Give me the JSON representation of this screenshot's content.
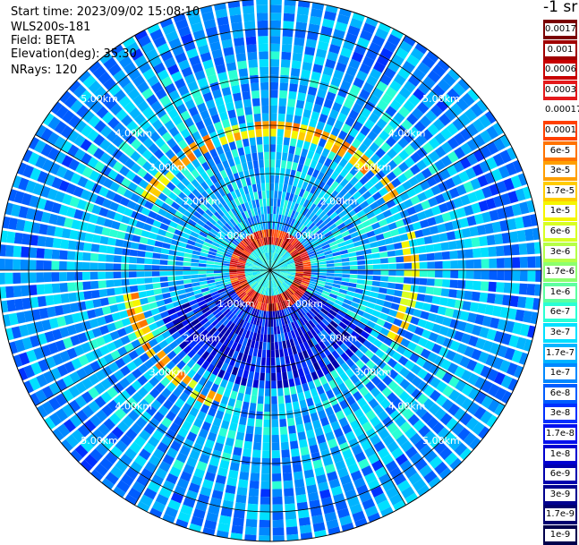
{
  "header": {
    "start_time": "Start time: 2023/09/02 15:08:10",
    "instrument": "WLS200s-181",
    "field": "Field: BETA",
    "elevation": "Elevation(deg): 35.30",
    "nrays": "NRays: 120"
  },
  "colorbar": {
    "unit": "-1 sr",
    "labels": [
      "0.0017",
      "0.001",
      "0.0006",
      "0.0003",
      "0.00017",
      "0.0001",
      "6e-5",
      "3e-5",
      "1.7e-5",
      "1e-5",
      "6e-6",
      "3e-6",
      "1.7e-6",
      "1e-6",
      "6e-7",
      "3e-7",
      "1.7e-7",
      "1e-7",
      "6e-8",
      "3e-8",
      "1.7e-8",
      "1e-8",
      "6e-9",
      "3e-9",
      "1.7e-9",
      "1e-9"
    ],
    "colors": [
      "#7a0000",
      "#a00000",
      "#c80000",
      "#e41a1c",
      "#ffffff",
      "#ff4000",
      "#ff7300",
      "#ff9f00",
      "#ffcc00",
      "#f5f500",
      "#d8ff24",
      "#b6ff47",
      "#8cff6e",
      "#5cffa0",
      "#2affd4",
      "#00e0ff",
      "#00b4ff",
      "#0088ff",
      "#005cff",
      "#0030ff",
      "#0010ee",
      "#0000d0",
      "#0000ae",
      "#00008f",
      "#000070",
      "#00004c"
    ]
  },
  "chart_data": {
    "type": "heatmap",
    "subtype": "polar PPI scan",
    "field": "BETA",
    "elevation_deg": 35.3,
    "n_rays": 120,
    "range_rings_km": [
      1,
      2,
      3,
      4,
      5
    ],
    "ring_labels": [
      "1.00km",
      "2.00km",
      "3.00km",
      "4.00km",
      "5.00km"
    ],
    "max_range_km": 5.6,
    "radial_spokes_deg": [
      0,
      30,
      60,
      90,
      120,
      150,
      180,
      210,
      240,
      270,
      300,
      330
    ],
    "color_scale": "log",
    "value_range": [
      1e-09,
      0.0017
    ],
    "features": [
      {
        "description": "high-backscatter ring",
        "range_km": [
          0.6,
          0.85
        ],
        "value": 0.0003
      },
      {
        "description": "aerosol/cloud arc band",
        "range_km": [
          2.7,
          3.1
        ],
        "value": 1.7e-05
      },
      {
        "description": "low-signal sector",
        "azimuth_deg": [
          120,
          250
        ],
        "range_km": [
          0.5,
          2.5
        ],
        "value": 1e-08
      }
    ],
    "background_value": 1.7e-07
  }
}
